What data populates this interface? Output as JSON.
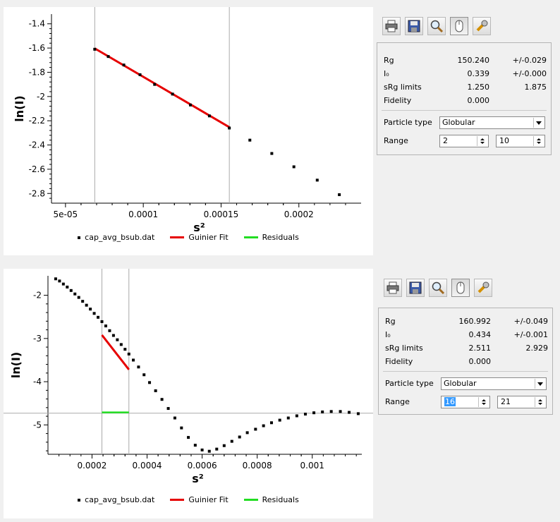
{
  "toolbar": {
    "icons": [
      "printer-icon",
      "save-icon",
      "zoom-icon",
      "mouse-icon",
      "settings-icon"
    ]
  },
  "legend": {
    "dat": "cap_avg_bsub.dat",
    "fit": "Guinier Fit",
    "resid": "Residuals"
  },
  "colors": {
    "fit": "#e60000",
    "resid": "#22dd22",
    "points": "#000000"
  },
  "panels": [
    {
      "info": {
        "rg": {
          "label": "Rg",
          "value": "150.240",
          "err": "+/-0.029"
        },
        "i0": {
          "label": "I₀",
          "value": "0.339",
          "err": "+/-0.000"
        },
        "srg": {
          "label": "sRg limits",
          "value": "1.250",
          "value2": "1.875"
        },
        "fidelity": {
          "label": "Fidelity",
          "value": "0.000"
        },
        "particle": {
          "label": "Particle type",
          "value": "Globular"
        },
        "range": {
          "label": "Range",
          "from": "2",
          "to": "10"
        }
      },
      "chart_data": {
        "type": "scatter",
        "xlabel": "s²",
        "ylabel": "ln(I)",
        "xlim": [
          4.1e-05,
          0.00024
        ],
        "ylim": [
          -2.88,
          -1.32
        ],
        "xticks": [
          5e-05,
          0.0001,
          0.00015,
          0.0002
        ],
        "xtick_labels": [
          "5e-05",
          "0.0001",
          "0.00015",
          "0.0002"
        ],
        "yticks": [
          -1.4,
          -1.6,
          -1.8,
          -2,
          -2.2,
          -2.4,
          -2.6,
          -2.8
        ],
        "ytick_labels": [
          "-1.4",
          "-1.6",
          "-1.8",
          "-2",
          "-2.2",
          "-2.4",
          "-2.6",
          "-2.8"
        ],
        "grid": false,
        "x": [
          6.88e-05,
          7.75e-05,
          8.75e-05,
          9.79e-05,
          0.0001073,
          0.0001188,
          0.0001303,
          0.0001425,
          0.0001553,
          0.0001685,
          0.0001826,
          0.0001968,
          0.0002118,
          0.000226
        ],
        "y": [
          -1.61,
          -1.67,
          -1.74,
          -1.82,
          -1.9,
          -1.98,
          -2.07,
          -2.16,
          -2.26,
          -2.36,
          -2.47,
          -2.58,
          -2.69,
          -2.81
        ],
        "fit": {
          "x": [
            6.88e-05,
            0.0001553
          ],
          "y": [
            -1.603,
            -2.253
          ]
        },
        "vlines": [
          6.88e-05,
          0.0001553
        ]
      }
    },
    {
      "info": {
        "rg": {
          "label": "Rg",
          "value": "160.992",
          "err": "+/-0.049"
        },
        "i0": {
          "label": "I₀",
          "value": "0.434",
          "err": "+/-0.001"
        },
        "srg": {
          "label": "sRg limits",
          "value": "2.511",
          "value2": "2.929"
        },
        "fidelity": {
          "label": "Fidelity",
          "value": "0.000"
        },
        "particle": {
          "label": "Particle type",
          "value": "Globular"
        },
        "range": {
          "label": "Range",
          "from": "16",
          "to": "21"
        }
      },
      "chart_data": {
        "type": "scatter",
        "xlabel": "s²",
        "ylabel": "ln(I)",
        "xlim": [
          4e-05,
          0.00118
        ],
        "ylim": [
          -5.68,
          -1.55
        ],
        "xticks": [
          0.0002,
          0.0004,
          0.0006,
          0.0008,
          0.001
        ],
        "xtick_labels": [
          "0.0002",
          "0.0004",
          "0.0006",
          "0.0008",
          "0.001"
        ],
        "yticks": [
          -2,
          -3,
          -4,
          -5
        ],
        "ytick_labels": [
          "-2",
          "-3",
          "-4",
          "-5"
        ],
        "grid": false,
        "x": [
          6.8e-05,
          8.2e-05,
          9.6e-05,
          0.00011,
          0.000124,
          0.000138,
          0.000152,
          0.000166,
          0.00018,
          0.000194,
          0.000208,
          0.000222,
          0.000236,
          0.00025,
          0.000264,
          0.000278,
          0.000292,
          0.000306,
          0.00032,
          0.000334,
          0.00035,
          0.000369,
          0.000389,
          0.000409,
          0.000431,
          0.000454,
          0.000477,
          0.000501,
          0.000525,
          0.00055,
          0.000575,
          0.0006,
          0.000626,
          0.000653,
          0.00068,
          0.000708,
          0.000736,
          0.000764,
          0.000794,
          0.000823,
          0.000852,
          0.000882,
          0.000913,
          0.000944,
          0.000975,
          0.001006,
          0.001037,
          0.001069,
          0.001102,
          0.001134,
          0.001167
        ],
        "y": [
          -1.62,
          -1.67,
          -1.74,
          -1.81,
          -1.89,
          -1.97,
          -2.05,
          -2.14,
          -2.23,
          -2.32,
          -2.42,
          -2.51,
          -2.61,
          -2.71,
          -2.82,
          -2.93,
          -3.03,
          -3.14,
          -3.25,
          -3.36,
          -3.5,
          -3.66,
          -3.84,
          -4.02,
          -4.21,
          -4.41,
          -4.62,
          -4.84,
          -5.07,
          -5.29,
          -5.47,
          -5.58,
          -5.61,
          -5.56,
          -5.48,
          -5.38,
          -5.28,
          -5.18,
          -5.1,
          -5.02,
          -4.95,
          -4.89,
          -4.84,
          -4.79,
          -4.75,
          -4.72,
          -4.7,
          -4.69,
          -4.69,
          -4.71,
          -4.74
        ],
        "fit": {
          "x": [
            0.000236,
            0.000334
          ],
          "y": [
            -2.92,
            -3.72
          ]
        },
        "residuals": {
          "x": [
            0.000236,
            0.000334
          ],
          "y": [
            -4.71,
            -4.71
          ]
        },
        "hline": -4.73,
        "vlines": [
          0.000236,
          0.000334
        ]
      }
    }
  ]
}
